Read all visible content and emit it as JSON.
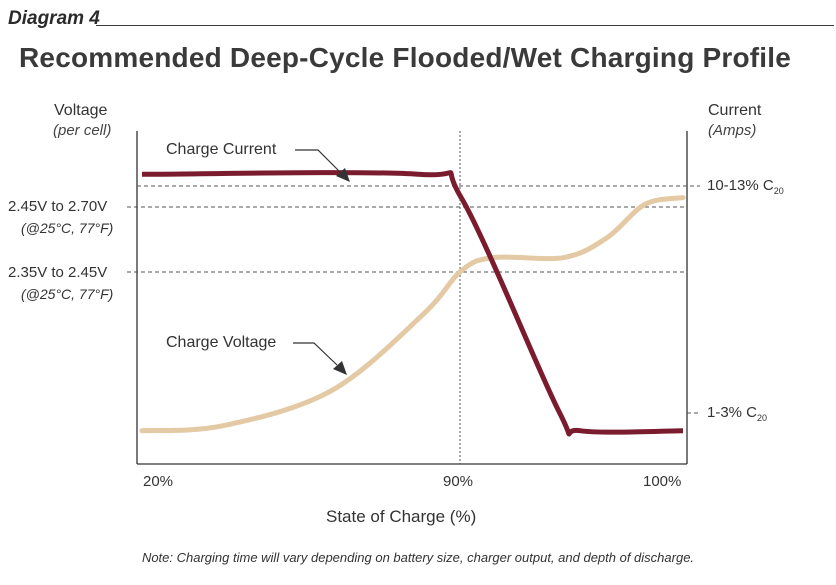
{
  "header": {
    "diagram_tag": "Diagram 4",
    "title": "Recommended Deep-Cycle Flooded/Wet Charging Profile"
  },
  "footer": {
    "note": "Note: Charging time will vary depending on battery size, charger output, and depth of discharge."
  },
  "chart_data": {
    "type": "line",
    "title": "Recommended Deep-Cycle Flooded/Wet Charging Profile",
    "xlabel": "State of Charge (%)",
    "x_ticks": [
      "20%",
      "90%",
      "100%"
    ],
    "left_axis": {
      "label": "Voltage",
      "sublabel": "(per cell)",
      "ticks": [
        {
          "label": "2.45V to 2.70V",
          "sublabel": "(@25°C, 77°F)"
        },
        {
          "label": "2.35V to 2.45V",
          "sublabel": "(@25°C, 77°F)"
        }
      ]
    },
    "right_axis": {
      "label": "Current",
      "sublabel": "(Amps)",
      "ticks": [
        {
          "label": "10-13% C",
          "subscript": "20"
        },
        {
          "label": "1-3% C",
          "subscript": "20"
        }
      ]
    },
    "series": [
      {
        "name": "Charge Current",
        "color": "#7a1c2e",
        "points": [
          [
            0.0,
            0.87
          ],
          [
            0.51,
            0.87
          ],
          [
            0.59,
            0.8
          ],
          [
            0.77,
            0.16
          ],
          [
            0.81,
            0.1
          ],
          [
            1.0,
            0.1
          ]
        ]
      },
      {
        "name": "Charge Voltage",
        "color": "#e3c9a4",
        "points": [
          [
            0.0,
            0.1
          ],
          [
            0.15,
            0.115
          ],
          [
            0.35,
            0.22
          ],
          [
            0.52,
            0.45
          ],
          [
            0.59,
            0.58
          ],
          [
            0.65,
            0.62
          ],
          [
            0.78,
            0.62
          ],
          [
            0.86,
            0.68
          ],
          [
            0.93,
            0.78
          ],
          [
            1.0,
            0.8
          ]
        ]
      }
    ],
    "grid": false,
    "colors": {
      "current": "#7a1c2e",
      "voltage": "#e3c9a4",
      "axis": "#333333",
      "guide": "#444444"
    }
  }
}
